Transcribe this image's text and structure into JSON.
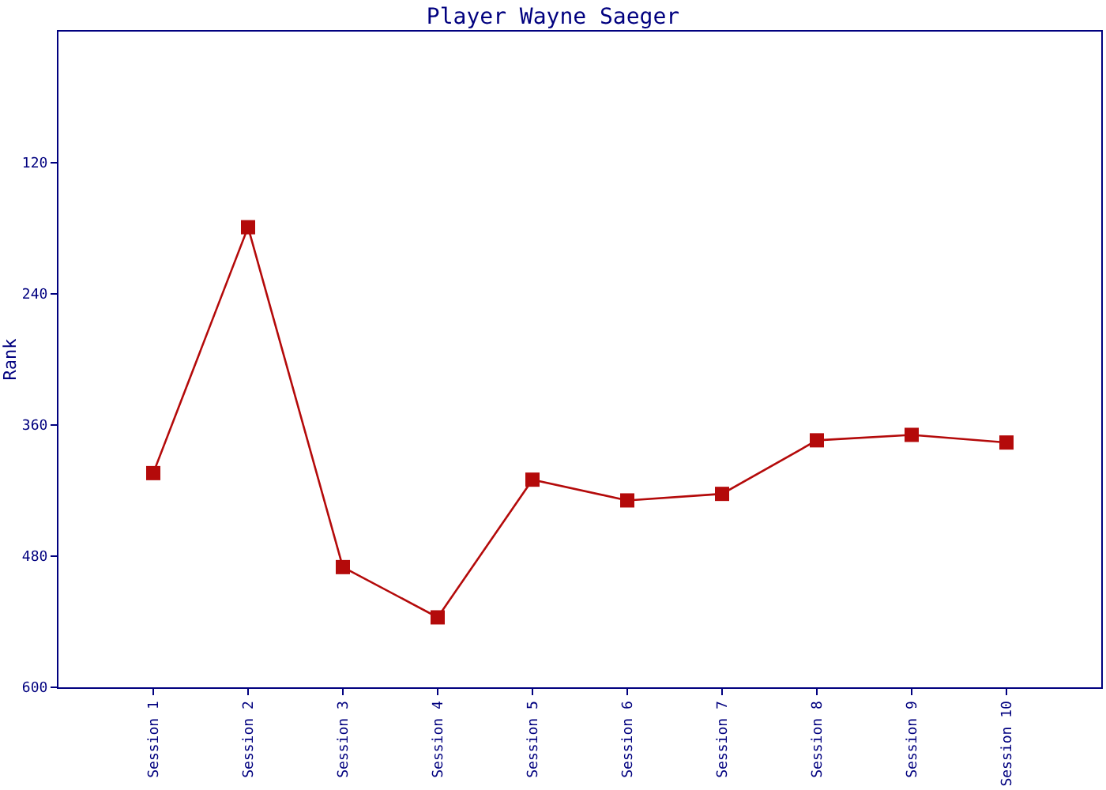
{
  "chart_data": {
    "type": "line",
    "title": "Player Wayne Saeger",
    "ylabel": "Rank",
    "categories": [
      "Session 1",
      "Session 2",
      "Session 3",
      "Session 4",
      "Session 5",
      "Session 6",
      "Session 7",
      "Session 8",
      "Session 9",
      "Session 10"
    ],
    "series": [
      {
        "color": "#b40a0a",
        "values": [
          404,
          179,
          490,
          536,
          410,
          429,
          423,
          374,
          369,
          376
        ]
      }
    ],
    "ylim": [
      600,
      0
    ],
    "yticks": [
      120,
      240,
      360,
      480,
      600
    ],
    "marker": "square",
    "line_style": "solid"
  }
}
